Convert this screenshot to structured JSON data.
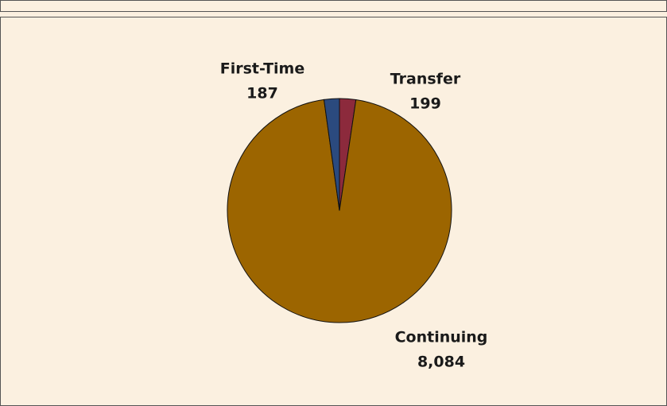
{
  "chart_data": {
    "type": "pie",
    "categories": [
      "Transfer",
      "Continuing",
      "First-Time"
    ],
    "values": [
      199,
      8084,
      187
    ],
    "value_labels": [
      "199",
      "8,084",
      "187"
    ],
    "colors": [
      "#8c2a3c",
      "#9c6500",
      "#2b4a7e"
    ]
  }
}
